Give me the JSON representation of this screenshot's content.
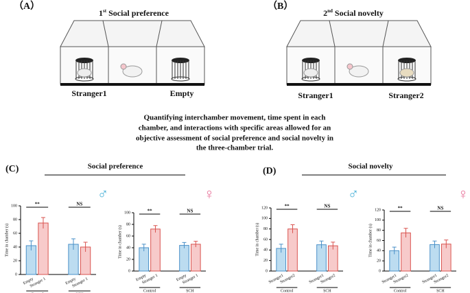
{
  "panels": [
    {
      "label": "（A）",
      "ordinal": "1",
      "suffix": "st",
      "title": "Social preference",
      "left": "Stranger1",
      "right": "Empty"
    },
    {
      "label": "（B）",
      "ordinal": "2",
      "suffix": "nd",
      "title": "Social novelty",
      "left": "Stranger1",
      "right": "Stranger2"
    }
  ],
  "caption": [
    "Quantifying interchamber movement, time spent in each",
    "chamber, and interactions with specific areas allowed for an",
    "objective assessment of social preference and social novelty in",
    "the three-chamber trial."
  ],
  "sections": [
    {
      "label": "(C)",
      "title": "Social preference"
    },
    {
      "label": "(D)",
      "title": "Social novelty"
    }
  ],
  "chart_data": [
    {
      "type": "bar",
      "sex": "♂",
      "y_label": "Time in chamber (s)",
      "categories": [
        "Empty",
        "Stranger 1",
        "Empty",
        "Stranger 1"
      ],
      "values": [
        42,
        75,
        44,
        40
      ],
      "errors": [
        7,
        8,
        8,
        7
      ],
      "colors": [
        "#bcdcf0",
        "#f7caca",
        "#bcdcf0",
        "#f7caca"
      ],
      "groups": [
        "Control",
        "SCH"
      ],
      "significance": [
        "**",
        "NS"
      ],
      "ylim": [
        0,
        100
      ],
      "yticks": [
        0,
        20,
        40,
        60,
        80,
        100
      ]
    },
    {
      "type": "bar",
      "sex": "♀",
      "y_label": "Time in chamber (s)",
      "categories": [
        "Empty",
        "Stranger 1",
        "Empty",
        "Stranger 1"
      ],
      "values": [
        40,
        72,
        44,
        46
      ],
      "errors": [
        6,
        6,
        5,
        5
      ],
      "colors": [
        "#bcdcf0",
        "#f7caca",
        "#bcdcf0",
        "#f7caca"
      ],
      "groups": [
        "Control",
        "SCH"
      ],
      "significance": [
        "**",
        "NS"
      ],
      "ylim": [
        0,
        100
      ],
      "yticks": [
        0,
        20,
        40,
        60,
        80,
        100
      ]
    },
    {
      "type": "bar",
      "sex": "♂",
      "y_label": "Time in chamber (s)",
      "categories": [
        "Stranger1",
        "Stranger2",
        "Stranger1",
        "Stranger2"
      ],
      "values": [
        43,
        80,
        50,
        48
      ],
      "errors": [
        8,
        8,
        7,
        7
      ],
      "colors": [
        "#bcdcf0",
        "#f7caca",
        "#bcdcf0",
        "#f7caca"
      ],
      "groups": [
        "Control",
        "SCH"
      ],
      "significance": [
        "**",
        "NS"
      ],
      "ylim": [
        0,
        120
      ],
      "yticks": [
        0,
        20,
        40,
        60,
        80,
        100,
        120
      ]
    },
    {
      "type": "bar",
      "sex": "♀",
      "y_label": "Time in chamber (s)",
      "categories": [
        "Stranger1",
        "Stranger2",
        "Stranger1",
        "Stranger2"
      ],
      "values": [
        40,
        75,
        52,
        53
      ],
      "errors": [
        7,
        9,
        7,
        8
      ],
      "colors": [
        "#bcdcf0",
        "#f7caca",
        "#bcdcf0",
        "#f7caca"
      ],
      "groups": [
        "Control",
        "SCH"
      ],
      "significance": [
        "**",
        "NS"
      ],
      "ylim": [
        0,
        120
      ],
      "yticks": [
        0,
        20,
        40,
        60,
        80,
        100,
        120
      ]
    }
  ]
}
